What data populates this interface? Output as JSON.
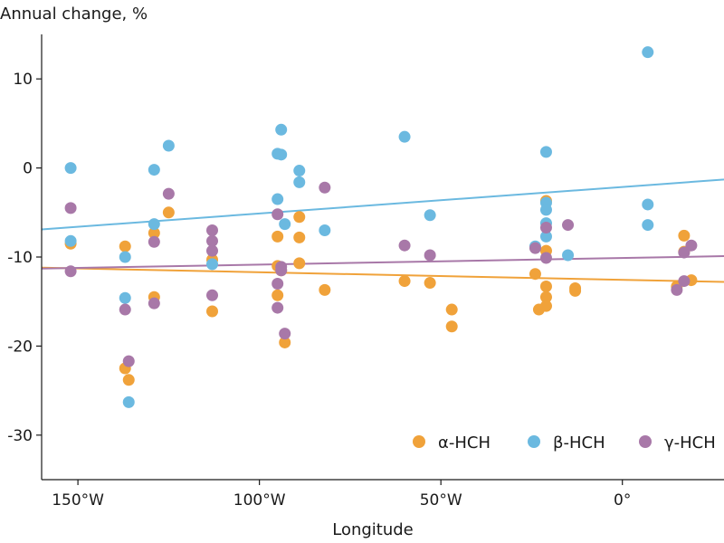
{
  "chart_data": {
    "type": "scatter",
    "title": "",
    "ylabel": "Annual change, %",
    "xlabel": "Longitude",
    "xlim": [
      -160,
      28
    ],
    "ylim": [
      -35,
      15
    ],
    "xticks": [
      -150,
      -100,
      -50,
      0
    ],
    "xtick_labels": [
      "150°W",
      "100°W",
      "50°W",
      "0°"
    ],
    "yticks": [
      10,
      0,
      -10,
      -20,
      -30
    ],
    "ytick_labels": [
      "10",
      "0",
      "-10",
      "-20",
      "-30"
    ],
    "grid": false,
    "legend_position": "bottom-right",
    "series": [
      {
        "name": "α-HCH",
        "color": "#F0A23A",
        "trend": [
          [
            -160,
            -11.2
          ],
          [
            28,
            -12.8
          ]
        ],
        "points": [
          [
            -152,
            -8.5
          ],
          [
            -137,
            -8.8
          ],
          [
            -137,
            -22.5
          ],
          [
            -136,
            -23.8
          ],
          [
            -129,
            -7.3
          ],
          [
            -129,
            -14.5
          ],
          [
            -125,
            -5.0
          ],
          [
            -113,
            -10.3
          ],
          [
            -113,
            -16.1
          ],
          [
            -95,
            -7.7
          ],
          [
            -95,
            -11.0
          ],
          [
            -95,
            -14.3
          ],
          [
            -94,
            -11.5
          ],
          [
            -93,
            -19.6
          ],
          [
            -89,
            -5.5
          ],
          [
            -89,
            -7.8
          ],
          [
            -89,
            -10.7
          ],
          [
            -82,
            -13.7
          ],
          [
            -60,
            -12.7
          ],
          [
            -53,
            -12.9
          ],
          [
            -47,
            -15.9
          ],
          [
            -47,
            -17.8
          ],
          [
            -24,
            -11.9
          ],
          [
            -23,
            -15.9
          ],
          [
            -21,
            -3.7
          ],
          [
            -21,
            -9.3
          ],
          [
            -21,
            -13.3
          ],
          [
            -21,
            -14.5
          ],
          [
            -21,
            -15.5
          ],
          [
            -13,
            -13.5
          ],
          [
            -13,
            -13.8
          ],
          [
            15,
            -13.3
          ],
          [
            17,
            -7.6
          ],
          [
            17,
            -9.4
          ],
          [
            19,
            -12.6
          ]
        ]
      },
      {
        "name": "β-HCH",
        "color": "#6BB9E0",
        "trend": [
          [
            -160,
            -6.9
          ],
          [
            28,
            -1.3
          ]
        ],
        "points": [
          [
            -152,
            0.0
          ],
          [
            -152,
            -8.2
          ],
          [
            -137,
            -10.0
          ],
          [
            -137,
            -14.6
          ],
          [
            -136,
            -26.3
          ],
          [
            -129,
            -0.2
          ],
          [
            -129,
            -6.3
          ],
          [
            -125,
            2.5
          ],
          [
            -113,
            -10.8
          ],
          [
            -95,
            1.6
          ],
          [
            -95,
            -3.5
          ],
          [
            -94,
            1.5
          ],
          [
            -94,
            4.3
          ],
          [
            -93,
            -6.3
          ],
          [
            -89,
            -0.3
          ],
          [
            -89,
            -1.6
          ],
          [
            -82,
            -7.0
          ],
          [
            -60,
            3.5
          ],
          [
            -53,
            -5.3
          ],
          [
            -24,
            -8.8
          ],
          [
            -21,
            1.8
          ],
          [
            -21,
            -3.9
          ],
          [
            -21,
            -4.7
          ],
          [
            -21,
            -6.2
          ],
          [
            -21,
            -7.7
          ],
          [
            -15,
            -9.8
          ],
          [
            7,
            13.0
          ],
          [
            7,
            -4.1
          ],
          [
            7,
            -6.4
          ]
        ]
      },
      {
        "name": "γ-HCH",
        "color": "#A878A8",
        "trend": [
          [
            -160,
            -11.3
          ],
          [
            28,
            -9.9
          ]
        ],
        "points": [
          [
            -152,
            -4.5
          ],
          [
            -152,
            -11.6
          ],
          [
            -137,
            -15.9
          ],
          [
            -136,
            -21.7
          ],
          [
            -129,
            -8.3
          ],
          [
            -129,
            -15.2
          ],
          [
            -125,
            -2.9
          ],
          [
            -113,
            -7.0
          ],
          [
            -113,
            -8.2
          ],
          [
            -113,
            -9.3
          ],
          [
            -113,
            -14.3
          ],
          [
            -95,
            -5.2
          ],
          [
            -95,
            -13.0
          ],
          [
            -95,
            -15.7
          ],
          [
            -94,
            -11.1
          ],
          [
            -94,
            -11.5
          ],
          [
            -93,
            -18.6
          ],
          [
            -82,
            -2.2
          ],
          [
            -60,
            -8.7
          ],
          [
            -53,
            -9.8
          ],
          [
            -24,
            -9.0
          ],
          [
            -21,
            -6.7
          ],
          [
            -21,
            -10.1
          ],
          [
            -15,
            -6.4
          ],
          [
            15,
            -13.7
          ],
          [
            17,
            -12.7
          ],
          [
            19,
            -8.7
          ],
          [
            17,
            -9.5
          ]
        ]
      }
    ]
  }
}
